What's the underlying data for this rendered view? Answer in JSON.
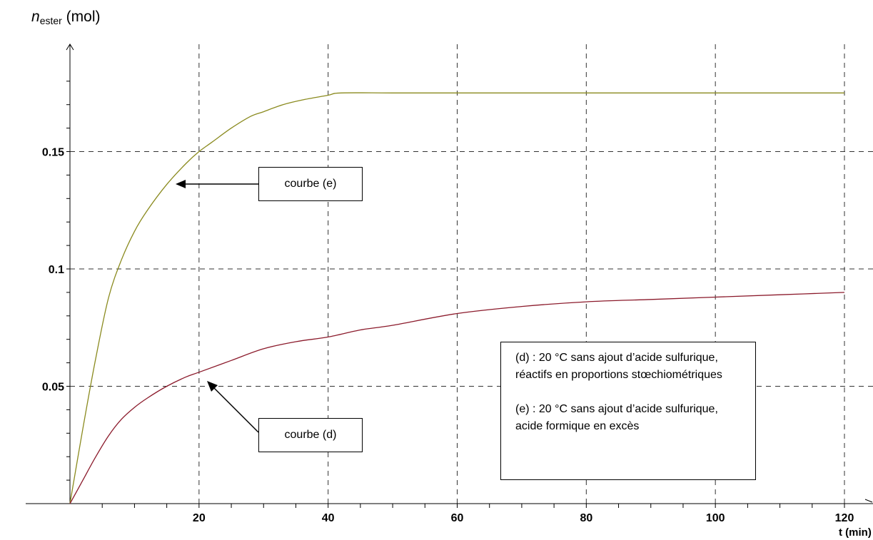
{
  "chart_data": {
    "type": "line",
    "ylabel": {
      "symbol": "n",
      "subscript": "ester",
      "unit": "(mol)"
    },
    "xlabel": "t (min)",
    "xlim": [
      0,
      120
    ],
    "ylim": [
      0,
      0.18
    ],
    "x_ticks": [
      20,
      40,
      60,
      80,
      100,
      120
    ],
    "y_ticks": [
      0.05,
      0.1,
      0.15
    ],
    "y_tick_labels": [
      "0.05",
      "0.1",
      "0.15"
    ],
    "grid": true,
    "series": [
      {
        "name": "courbe (e)",
        "color": "#8a8a1e",
        "x": [
          0,
          2,
          4,
          6,
          8,
          10,
          12,
          15,
          18,
          20,
          22,
          25,
          28,
          30,
          33,
          36,
          40,
          42,
          50,
          60,
          70,
          80,
          90,
          100,
          110,
          120
        ],
        "values": [
          0,
          0.032,
          0.062,
          0.088,
          0.104,
          0.116,
          0.125,
          0.136,
          0.145,
          0.15,
          0.154,
          0.16,
          0.165,
          0.167,
          0.17,
          0.172,
          0.174,
          0.175,
          0.175,
          0.175,
          0.175,
          0.175,
          0.175,
          0.175,
          0.175,
          0.175
        ]
      },
      {
        "name": "courbe (d)",
        "color": "#8b1a2b",
        "x": [
          0,
          2,
          4,
          6,
          8,
          10,
          12,
          15,
          18,
          20,
          25,
          30,
          35,
          40,
          45,
          50,
          60,
          70,
          80,
          90,
          100,
          110,
          120
        ],
        "values": [
          0,
          0.01,
          0.02,
          0.029,
          0.036,
          0.041,
          0.045,
          0.05,
          0.054,
          0.056,
          0.061,
          0.066,
          0.069,
          0.071,
          0.074,
          0.076,
          0.081,
          0.084,
          0.086,
          0.087,
          0.088,
          0.089,
          0.09
        ]
      }
    ],
    "annotations": {
      "curve_e_label": "courbe (e)",
      "curve_d_label": "courbe (d)",
      "legend_d_line1": "(d) : 20 °C sans ajout d’acide sulfurique,",
      "legend_d_line2": "réactifs en proportions stœchiométriques",
      "legend_e_line1": "(e) : 20 °C sans ajout d’acide sulfurique,",
      "legend_e_line2": "acide formique en excès"
    }
  }
}
